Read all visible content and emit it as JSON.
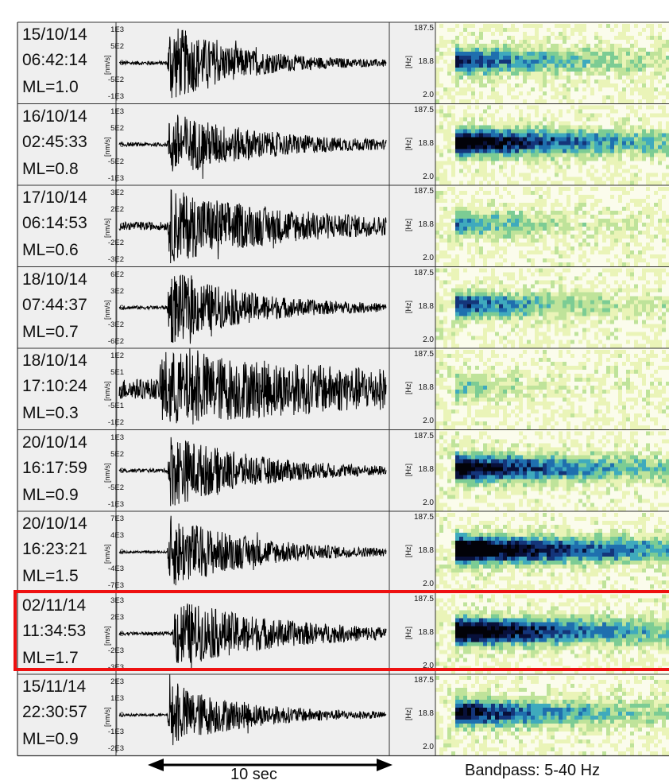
{
  "chart_data": {
    "type": "waveform-spectrogram-panels",
    "amplitude_unit": "[nm/s]",
    "frequency_unit": "[Hz]",
    "frequency_ticks": [
      "187.5",
      "18.8",
      "2.0"
    ],
    "scale_bar_label": "10 sec",
    "bandpass_label": "Bandpass: 5-40 Hz",
    "highlight_color": "#ee1111",
    "events": [
      {
        "date": "15/10/14",
        "time": "06:42:14",
        "ml": "ML=1.0",
        "amp_ticks": [
          "1E3",
          "5E2",
          "0",
          "-5E2",
          "-1E3"
        ],
        "amp_max": 1000,
        "peak_ratio": 1.3,
        "noise": 0.05,
        "onset": 0.18,
        "decay": 0.25,
        "spec_intensity": 0.65,
        "spec_extent": 0.55
      },
      {
        "date": "16/10/14",
        "time": "02:45:33",
        "ml": "ML=0.8",
        "amp_ticks": [
          "1E3",
          "5E2",
          "0",
          "-5E2",
          "-1E3"
        ],
        "amp_max": 1000,
        "peak_ratio": 1.05,
        "noise": 0.06,
        "onset": 0.18,
        "decay": 0.35,
        "spec_intensity": 0.9,
        "spec_extent": 0.75
      },
      {
        "date": "17/10/14",
        "time": "06:14:53",
        "ml": "ML=0.6",
        "amp_ticks": [
          "3E2",
          "2E2",
          "0",
          "-2E2",
          "-3E2"
        ],
        "amp_max": 300,
        "peak_ratio": 1.1,
        "noise": 0.12,
        "onset": 0.18,
        "decay": 0.45,
        "spec_intensity": 0.45,
        "spec_extent": 0.4
      },
      {
        "date": "18/10/14",
        "time": "07:44:37",
        "ml": "ML=0.7",
        "amp_ticks": [
          "6E2",
          "3E2",
          "0",
          "-3E2",
          "-6E2"
        ],
        "amp_max": 600,
        "peak_ratio": 1.2,
        "noise": 0.05,
        "onset": 0.18,
        "decay": 0.3,
        "spec_intensity": 0.6,
        "spec_extent": 0.5
      },
      {
        "date": "18/10/14",
        "time": "17:10:24",
        "ml": "ML=0.3",
        "amp_ticks": [
          "1E2",
          "5E1",
          "0",
          "-5E1",
          "-1E2"
        ],
        "amp_max": 100,
        "peak_ratio": 0.95,
        "noise": 0.35,
        "onset": 0.15,
        "decay": 0.8,
        "spec_intensity": 0.3,
        "spec_extent": 0.3
      },
      {
        "date": "20/10/14",
        "time": "16:17:59",
        "ml": "ML=0.9",
        "amp_ticks": [
          "1E3",
          "5E2",
          "0",
          "-5E2",
          "-1E3"
        ],
        "amp_max": 1000,
        "peak_ratio": 1.2,
        "noise": 0.05,
        "onset": 0.18,
        "decay": 0.32,
        "spec_intensity": 0.85,
        "spec_extent": 0.75
      },
      {
        "date": "20/10/14",
        "time": "16:23:21",
        "ml": "ML=1.5",
        "amp_ticks": [
          "7E3",
          "4E3",
          "0",
          "-4E3",
          "-7E3"
        ],
        "amp_max": 7000,
        "peak_ratio": 1.2,
        "noise": 0.03,
        "onset": 0.18,
        "decay": 0.32,
        "spec_intensity": 1.0,
        "spec_extent": 0.85
      },
      {
        "date": "02/11/14",
        "time": "11:34:53",
        "ml": "ML=1.7",
        "amp_ticks": [
          "3E3",
          "2E3",
          "0",
          "-2E3",
          "-3E3"
        ],
        "amp_max": 3000,
        "peak_ratio": 1.1,
        "noise": 0.05,
        "onset": 0.2,
        "decay": 0.4,
        "spec_intensity": 0.95,
        "spec_extent": 0.8
      },
      {
        "date": "15/11/14",
        "time": "22:30:57",
        "ml": "ML=0.9",
        "amp_ticks": [
          "2E3",
          "1E3",
          "0",
          "-1E3",
          "-2E3"
        ],
        "amp_max": 2000,
        "peak_ratio": 1.0,
        "noise": 0.04,
        "onset": 0.18,
        "decay": 0.3,
        "spec_intensity": 0.75,
        "spec_extent": 0.65
      }
    ]
  }
}
